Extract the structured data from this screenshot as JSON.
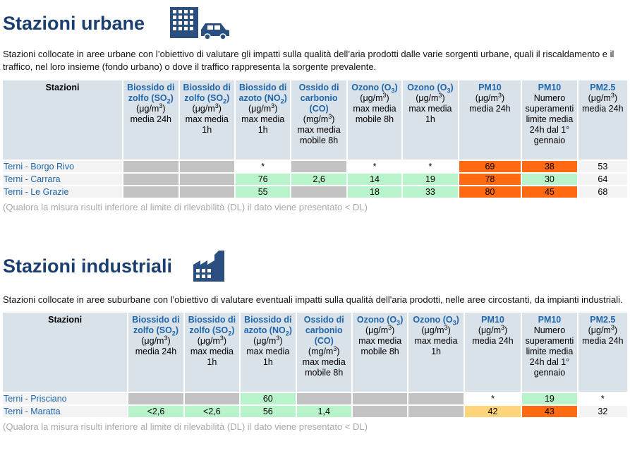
{
  "urban": {
    "title": "Stazioni urbane",
    "icon": "city-traffic-icon",
    "description": "Stazioni collocate in aree urbane con l’obiettivo di valutare gli impatti sulla qualità dell’aria prodotti dalle varie sorgenti urbane, quali il riscaldamento e il traffico, nel loro insieme (fondo urbano) o dove il traffico rappresenta la sorgente prevalente.",
    "note": "(Qualora la misura risulti inferiore al limite di rilevabilità (DL) il dato viene presentato < DL)",
    "rows": [
      {
        "name": "Terni - Borgo Rivo",
        "cells": [
          "",
          "",
          "*",
          "",
          "*",
          "*",
          "69",
          "38",
          "53"
        ]
      },
      {
        "name": "Terni - Carrara",
        "cells": [
          "",
          "",
          "76",
          "2,6",
          "14",
          "19",
          "78",
          "30",
          "64"
        ]
      },
      {
        "name": "Terni - Le Grazie",
        "cells": [
          "",
          "",
          "55",
          "",
          "18",
          "33",
          "80",
          "45",
          "68"
        ]
      }
    ]
  },
  "industrial": {
    "title": "Stazioni industriali",
    "icon": "factory-icon",
    "description": "Stazioni collocate in aree suburbane con l'obiettivo di valutare eventuali impatti sulla qualità dell'aria prodotti, nelle aree circostanti, da impianti industriali.",
    "note": "(Qualora la misura risulti inferiore al limite di rilevabilità (DL) il dato viene presentato < DL)",
    "rows": [
      {
        "name": "Terni - Prisciano",
        "cells": [
          "",
          "",
          "60",
          "",
          "",
          "",
          "*",
          "19",
          "*"
        ]
      },
      {
        "name": "Terni - Maratta",
        "cells": [
          "<2,6",
          "<2,6",
          "56",
          "1,4",
          "",
          "",
          "42",
          "43",
          "32"
        ]
      }
    ]
  },
  "headers": {
    "stations": "Stazioni",
    "so2_a": {
      "name": "Biossido di zolfo (SO",
      "sub": "2",
      "close": ")",
      "unit": "(μg/m",
      "sup": "3",
      "unit_close": ")",
      "desc": "media 24h"
    },
    "so2_b": {
      "name": "Biossido di zolfo (SO",
      "sub": "2",
      "close": ")",
      "unit": "(μg/m",
      "sup": "3",
      "unit_close": ")",
      "desc": "max media 1h"
    },
    "no2": {
      "name": "Biossido di azoto (NO",
      "sub": "2",
      "close": ")",
      "unit": "(μg/m",
      "sup": "3",
      "unit_close": ")",
      "desc": "max media 1h"
    },
    "co": {
      "name": "Ossido di carbonio (CO)",
      "unit": "(mg/m",
      "sup": "3",
      "unit_close": ")",
      "desc": "max media mobile 8h"
    },
    "o3_a": {
      "name": "Ozono (O",
      "sub": "3",
      "close": ")",
      "unit": "(μg/m",
      "sup": "3",
      "unit_close": ")",
      "desc": "max media mobile 8h"
    },
    "o3_b": {
      "name": "Ozono (O",
      "sub": "3",
      "close": ")",
      "unit": "(μg/m",
      "sup": "3",
      "unit_close": ")",
      "desc": "max media 1h"
    },
    "pm10_a": {
      "name": "PM10",
      "unit": "(μg/m",
      "sup": "3",
      "unit_close": ")",
      "desc": "media 24h"
    },
    "pm10_b": {
      "name": "PM10",
      "desc": "Numero superamenti limite media 24h dal 1° gennaio"
    },
    "pm25": {
      "name": "PM2.5",
      "unit": "(μg/m",
      "sup": "3",
      "unit_close": ")",
      "desc": "media 24h"
    }
  },
  "colors": {
    "title": "#1b3f6e",
    "link": "#1f66aa",
    "header_bg": "#d9e1e9",
    "no_data": "#c3c3c3",
    "good": "#b8f3cb",
    "moderate": "#ffd57b",
    "bad": "#ff6a13"
  }
}
